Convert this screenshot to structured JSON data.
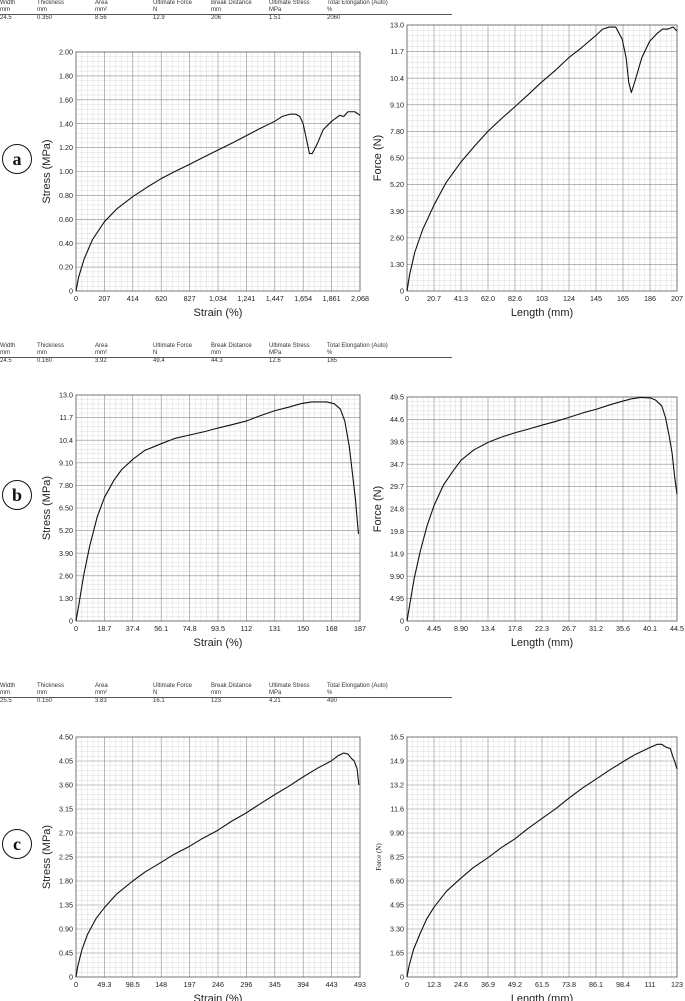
{
  "panels": [
    {
      "label": "a",
      "properties": [
        {
          "name": "Width",
          "unit": "mm",
          "value": "24.5"
        },
        {
          "name": "Thickness",
          "unit": "mm",
          "value": "0.350"
        },
        {
          "name": "Area",
          "unit": "mm²",
          "value": "8.56"
        },
        {
          "name": "Ultimate Force",
          "unit": "N",
          "value": "12.9"
        },
        {
          "name": "Break Distance",
          "unit": "mm",
          "value": "206"
        },
        {
          "name": "Ultimate Stress",
          "unit": "MPa",
          "value": "1.51"
        },
        {
          "name": "Total Elongation (Auto)",
          "unit": "%",
          "value": "2060"
        }
      ]
    },
    {
      "label": "b",
      "properties": [
        {
          "name": "Width",
          "unit": "mm",
          "value": "24.5"
        },
        {
          "name": "Thickness",
          "unit": "mm",
          "value": "0.160"
        },
        {
          "name": "Area",
          "unit": "mm²",
          "value": "3.92"
        },
        {
          "name": "Ultimate Force",
          "unit": "N",
          "value": "49.4"
        },
        {
          "name": "Break Distance",
          "unit": "mm",
          "value": "44.3"
        },
        {
          "name": "Ultimate Stress",
          "unit": "MPa",
          "value": "12.6"
        },
        {
          "name": "Total Elongation (Auto)",
          "unit": "%",
          "value": "185"
        }
      ]
    },
    {
      "label": "c",
      "properties": [
        {
          "name": "Width",
          "unit": "mm",
          "value": "25.5"
        },
        {
          "name": "Thickness",
          "unit": "mm",
          "value": "0.150"
        },
        {
          "name": "Area",
          "unit": "mm²",
          "value": "3.83"
        },
        {
          "name": "Ultimate Force",
          "unit": "N",
          "value": "16.1"
        },
        {
          "name": "Break Distance",
          "unit": "mm",
          "value": "123"
        },
        {
          "name": "Ultimate Stress",
          "unit": "MPa",
          "value": "4.21"
        },
        {
          "name": "Total Elongation (Auto)",
          "unit": "%",
          "value": "490"
        }
      ]
    }
  ],
  "chart_data": [
    {
      "id": "a-stress-strain",
      "panel": "a",
      "type": "line",
      "xlabel": "Strain (%)",
      "ylabel": "Stress (MPa)",
      "xlim": [
        0,
        2068
      ],
      "ylim": [
        0,
        2.0
      ],
      "xticks": [
        "0",
        "207",
        "414",
        "620",
        "827",
        "1,034",
        "1,241",
        "1,447",
        "1,654",
        "1,861",
        "2,068"
      ],
      "yticks": [
        "0",
        "0.20",
        "0.40",
        "0.60",
        "0.80",
        "1.00",
        "1.20",
        "1.40",
        "1.60",
        "1.80",
        "2.00"
      ],
      "series": [
        {
          "x": [
            0,
            20,
            60,
            120,
            207,
            300,
            414,
            520,
            620,
            720,
            827,
            930,
            1034,
            1140,
            1241,
            1340,
            1447,
            1500,
            1560,
            1600,
            1630,
            1654,
            1680,
            1700,
            1720,
            1760,
            1800,
            1861,
            1920,
            1950,
            1980,
            2000,
            2030,
            2068
          ],
          "y": [
            0,
            0.12,
            0.27,
            0.43,
            0.58,
            0.69,
            0.79,
            0.87,
            0.94,
            1.0,
            1.06,
            1.12,
            1.18,
            1.24,
            1.3,
            1.36,
            1.42,
            1.46,
            1.48,
            1.48,
            1.46,
            1.4,
            1.26,
            1.15,
            1.15,
            1.24,
            1.35,
            1.42,
            1.47,
            1.46,
            1.5,
            1.5,
            1.5,
            1.47
          ]
        }
      ]
    },
    {
      "id": "a-force-length",
      "panel": "a",
      "type": "line",
      "xlabel": "Length (mm)",
      "ylabel": "Force (N)",
      "xlim": [
        0,
        207
      ],
      "ylim": [
        0,
        13.0
      ],
      "xticks": [
        "0",
        "20.7",
        "41.3",
        "62.0",
        "82.6",
        "103",
        "124",
        "145",
        "165",
        "186",
        "207"
      ],
      "yticks": [
        "0",
        "1.30",
        "2.60",
        "3.90",
        "5.20",
        "6.50",
        "7.80",
        "9.10",
        "10.4",
        "11.7",
        "13.0"
      ],
      "series": [
        {
          "x": [
            0,
            2,
            6,
            12,
            20.7,
            30,
            41.3,
            52,
            62,
            72,
            82.6,
            93,
            103,
            114,
            124,
            134,
            145,
            150,
            155,
            160,
            165,
            168,
            170,
            172,
            175,
            180,
            186,
            192,
            196,
            200,
            204,
            207
          ],
          "y": [
            0,
            0.8,
            1.9,
            3.0,
            4.2,
            5.3,
            6.3,
            7.1,
            7.8,
            8.4,
            9.0,
            9.6,
            10.2,
            10.8,
            11.4,
            11.9,
            12.5,
            12.8,
            12.9,
            12.9,
            12.3,
            11.4,
            10.2,
            9.7,
            10.3,
            11.4,
            12.2,
            12.6,
            12.8,
            12.8,
            12.9,
            12.7
          ]
        }
      ]
    },
    {
      "id": "b-stress-strain",
      "panel": "b",
      "type": "line",
      "xlabel": "Strain (%)",
      "ylabel": "Stress (MPa)",
      "xlim": [
        0,
        187
      ],
      "ylim": [
        0,
        13.0
      ],
      "xticks": [
        "0",
        "18.7",
        "37.4",
        "56.1",
        "74.8",
        "93.5",
        "112",
        "131",
        "150",
        "168",
        "187"
      ],
      "yticks": [
        "0",
        "1.30",
        "2.60",
        "3.90",
        "5.20",
        "6.50",
        "7.80",
        "9.10",
        "10.4",
        "11.7",
        "13.0"
      ],
      "series": [
        {
          "x": [
            0,
            2,
            5,
            9,
            14,
            18.7,
            25,
            30,
            37.4,
            45,
            56.1,
            65,
            74.8,
            85,
            93.5,
            103,
            112,
            121,
            131,
            140,
            148,
            155,
            160,
            165,
            170,
            174,
            177,
            180,
            182,
            184,
            185,
            186
          ],
          "y": [
            0,
            1.0,
            2.6,
            4.3,
            6.0,
            7.1,
            8.1,
            8.7,
            9.3,
            9.8,
            10.2,
            10.5,
            10.7,
            10.9,
            11.1,
            11.3,
            11.5,
            11.8,
            12.1,
            12.3,
            12.5,
            12.6,
            12.6,
            12.6,
            12.5,
            12.2,
            11.5,
            10.0,
            8.5,
            7.0,
            6.0,
            5.0
          ]
        }
      ]
    },
    {
      "id": "b-force-length",
      "panel": "b",
      "type": "line",
      "xlabel": "Length (mm)",
      "ylabel": "Force (N)",
      "xlim": [
        0,
        44.5
      ],
      "ylim": [
        0,
        49.5
      ],
      "xticks": [
        "0",
        "4.45",
        "8.90",
        "13.4",
        "17.8",
        "22.3",
        "26.7",
        "31.2",
        "35.6",
        "40.1",
        "44.5"
      ],
      "yticks": [
        "0",
        "4.95",
        "9.90",
        "14.9",
        "19.8",
        "24.8",
        "29.7",
        "34.7",
        "39.6",
        "44.6",
        "49.5"
      ],
      "series": [
        {
          "x": [
            0,
            0.5,
            1.2,
            2.2,
            3.3,
            4.45,
            6,
            7.5,
            8.9,
            11,
            13.4,
            15.5,
            17.8,
            20,
            22.3,
            24.5,
            26.7,
            29,
            31.2,
            33.5,
            35.6,
            37,
            38.5,
            40.1,
            41,
            42,
            42.6,
            43.2,
            43.7,
            44.1,
            44.5
          ],
          "y": [
            0,
            4.0,
            9.5,
            15.5,
            21.0,
            25.5,
            30.0,
            33.0,
            35.5,
            37.8,
            39.5,
            40.6,
            41.6,
            42.4,
            43.3,
            44.1,
            45.0,
            46.0,
            46.8,
            47.8,
            48.6,
            49.1,
            49.4,
            49.3,
            48.8,
            47.5,
            45.0,
            41.0,
            37.0,
            32.0,
            28.0
          ]
        }
      ]
    },
    {
      "id": "c-stress-strain",
      "panel": "c",
      "type": "line",
      "xlabel": "Strain (%)",
      "ylabel": "Stress (MPa)",
      "xlim": [
        0,
        493
      ],
      "ylim": [
        0,
        4.5
      ],
      "xticks": [
        "0",
        "49.3",
        "98.5",
        "148",
        "197",
        "246",
        "296",
        "345",
        "394",
        "443",
        "493"
      ],
      "yticks": [
        "0",
        "0.45",
        "0.90",
        "1.35",
        "1.80",
        "2.25",
        "2.70",
        "3.15",
        "3.60",
        "4.05",
        "4.50"
      ],
      "series": [
        {
          "x": [
            0,
            3,
            10,
            20,
            35,
            49.3,
            70,
            98.5,
            120,
            148,
            170,
            197,
            220,
            246,
            270,
            296,
            320,
            345,
            370,
            394,
            420,
            443,
            455,
            465,
            472,
            478,
            483,
            488,
            491
          ],
          "y": [
            0,
            0.2,
            0.5,
            0.8,
            1.1,
            1.3,
            1.55,
            1.8,
            1.97,
            2.15,
            2.3,
            2.45,
            2.6,
            2.75,
            2.92,
            3.08,
            3.25,
            3.42,
            3.58,
            3.75,
            3.92,
            4.05,
            4.15,
            4.2,
            4.18,
            4.1,
            4.05,
            3.9,
            3.6
          ]
        }
      ]
    },
    {
      "id": "c-force-length",
      "panel": "c",
      "type": "line",
      "xlabel": "Length (mm)",
      "ylabel": "Force (N)",
      "xlim": [
        0,
        123
      ],
      "ylim": [
        0,
        16.5
      ],
      "xticks": [
        "0",
        "12.3",
        "24.6",
        "36.9",
        "49.2",
        "61.5",
        "73.8",
        "86.1",
        "98.4",
        "111",
        "123"
      ],
      "yticks": [
        "0",
        "1.65",
        "3.30",
        "4.95",
        "6.60",
        "8.25",
        "9.90",
        "11.6",
        "13.2",
        "14.9",
        "16.5"
      ],
      "series": [
        {
          "x": [
            0,
            1,
            3,
            6,
            9,
            12.3,
            18,
            24.6,
            30,
            36.9,
            43,
            49.2,
            55,
            61.5,
            68,
            73.8,
            80,
            86.1,
            92,
            98.4,
            104,
            111,
            114,
            116,
            118,
            120,
            121,
            122,
            123
          ],
          "y": [
            0,
            0.8,
            1.9,
            3.0,
            4.0,
            4.8,
            5.9,
            6.8,
            7.5,
            8.2,
            8.9,
            9.5,
            10.2,
            10.9,
            11.6,
            12.3,
            13.0,
            13.6,
            14.2,
            14.8,
            15.3,
            15.8,
            16.0,
            16.0,
            15.8,
            15.7,
            15.2,
            14.8,
            14.3
          ]
        }
      ]
    }
  ]
}
